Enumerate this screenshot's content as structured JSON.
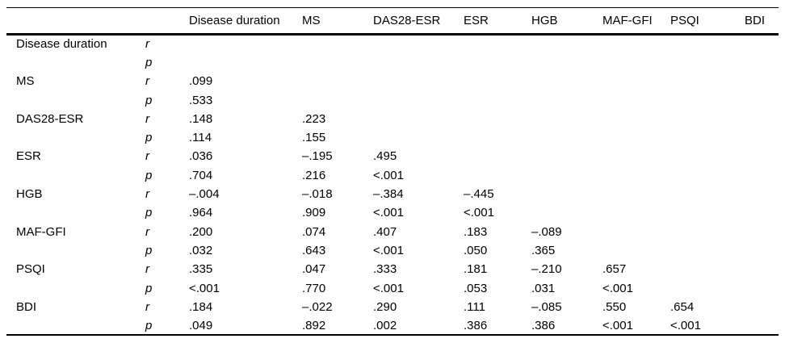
{
  "table": {
    "columns": [
      "",
      "",
      "Disease duration",
      "MS",
      "DAS28-ESR",
      "ESR",
      "HGB",
      "MAF-GFI",
      "PSQI",
      "BDI"
    ],
    "stat_labels": {
      "r": "r",
      "p": "p"
    },
    "rows": [
      {
        "label": "Disease duration",
        "r": [
          "",
          "",
          "",
          "",
          "",
          "",
          "",
          ""
        ],
        "p": [
          "",
          "",
          "",
          "",
          "",
          "",
          "",
          ""
        ]
      },
      {
        "label": "MS",
        "r": [
          ".099",
          "",
          "",
          "",
          "",
          "",
          "",
          ""
        ],
        "p": [
          ".533",
          "",
          "",
          "",
          "",
          "",
          "",
          ""
        ]
      },
      {
        "label": "DAS28-ESR",
        "r": [
          ".148",
          ".223",
          "",
          "",
          "",
          "",
          "",
          ""
        ],
        "p": [
          ".114",
          ".155",
          "",
          "",
          "",
          "",
          "",
          ""
        ]
      },
      {
        "label": "ESR",
        "r": [
          ".036",
          "–.195",
          ".495",
          "",
          "",
          "",
          "",
          ""
        ],
        "p": [
          ".704",
          ".216",
          "<.001",
          "",
          "",
          "",
          "",
          ""
        ]
      },
      {
        "label": "HGB",
        "r": [
          "–.004",
          "–.018",
          "–.384",
          "–.445",
          "",
          "",
          "",
          ""
        ],
        "p": [
          ".964",
          ".909",
          "<.001",
          "<.001",
          "",
          "",
          "",
          ""
        ]
      },
      {
        "label": "MAF-GFI",
        "r": [
          ".200",
          ".074",
          ".407",
          ".183",
          "–.089",
          "",
          "",
          ""
        ],
        "p": [
          ".032",
          ".643",
          "<.001",
          ".050",
          ".365",
          "",
          "",
          ""
        ]
      },
      {
        "label": "PSQI",
        "r": [
          ".335",
          ".047",
          ".333",
          ".181",
          "–.210",
          ".657",
          "",
          ""
        ],
        "p": [
          "<.001",
          ".770",
          "<.001",
          ".053",
          ".031",
          "<.001",
          "",
          ""
        ]
      },
      {
        "label": "BDI",
        "r": [
          ".184",
          "–.022",
          ".290",
          ".111",
          "–.085",
          ".550",
          ".654",
          ""
        ],
        "p": [
          ".049",
          ".892",
          ".002",
          ".386",
          ".386",
          "<.001",
          "<.001",
          ""
        ]
      }
    ]
  }
}
